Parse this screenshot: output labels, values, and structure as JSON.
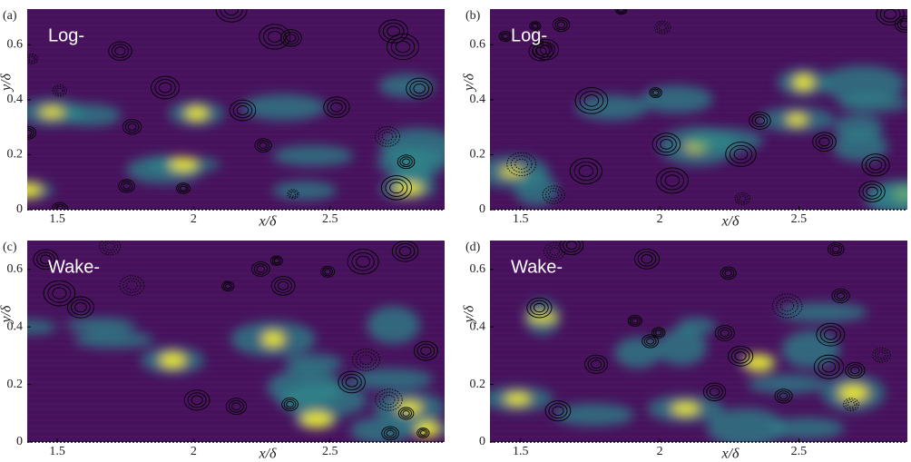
{
  "chart_data": [
    {
      "type": "contour",
      "panel_label": "(a)",
      "annotation": "Log-",
      "xlabel": "x/δ",
      "ylabel": "y/δ",
      "xlim": [
        1.39,
        2.92
      ],
      "ylim": [
        0,
        0.73
      ],
      "xticks": [
        1.5,
        2,
        2.5
      ],
      "yticks": [
        0,
        0.2,
        0.4,
        0.6
      ]
    },
    {
      "type": "contour",
      "panel_label": "(b)",
      "annotation": "Log-",
      "xlabel": "x/δ",
      "ylabel": "y/δ",
      "xlim": [
        1.39,
        2.89
      ],
      "ylim": [
        0,
        0.73
      ],
      "xticks": [
        1.5,
        2,
        2.5
      ],
      "yticks": [
        0,
        0.2,
        0.4,
        0.6
      ]
    },
    {
      "type": "contour",
      "panel_label": "(c)",
      "annotation": "Wake-",
      "xlabel": "x/δ",
      "ylabel": "y/δ",
      "xlim": [
        1.39,
        2.92
      ],
      "ylim": [
        0,
        0.7
      ],
      "xticks": [
        1.5,
        2,
        2.5
      ],
      "yticks": [
        0,
        0.2,
        0.4,
        0.6
      ]
    },
    {
      "type": "contour",
      "panel_label": "(d)",
      "annotation": "Wake-",
      "xlabel": "x/δ",
      "ylabel": "y/δ",
      "xlim": [
        1.39,
        2.89
      ],
      "ylim": [
        0,
        0.7
      ],
      "xticks": [
        1.5,
        2,
        2.5
      ],
      "yticks": [
        0,
        0.2,
        0.4,
        0.6
      ]
    }
  ]
}
